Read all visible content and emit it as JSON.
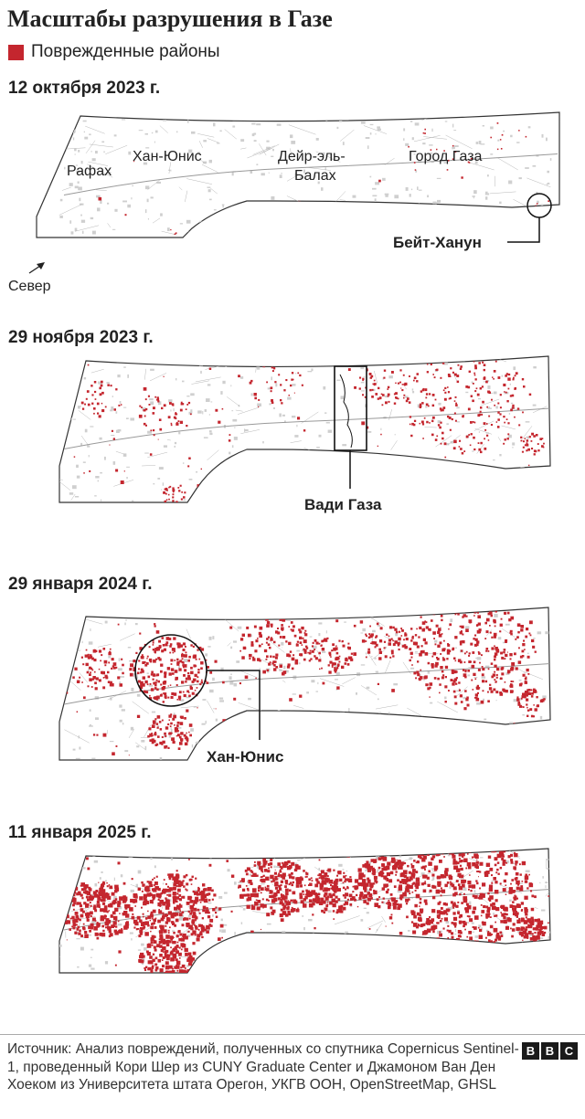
{
  "title": "Масштабы разрушения в Газе",
  "legend": {
    "label": "Поврежденные районы",
    "color": "#c4262e"
  },
  "colors": {
    "damage": "#c4262e",
    "urban": "#cfcfcf",
    "roads": "#b8b8b8",
    "outline": "#333333"
  },
  "panels": [
    {
      "date": "12 октября 2023 г.",
      "damage_level": 0.05,
      "city_labels": [
        "Рафах",
        "Хан-Юнис",
        "Дейр-эль-",
        "Балах",
        "Город Газа"
      ],
      "callout": "Бейт-Ханун",
      "north_label": "Север"
    },
    {
      "date": "29 ноября 2023 г.",
      "damage_level": 0.35,
      "callout": "Вади Газа"
    },
    {
      "date": "29 января 2024 г.",
      "damage_level": 0.55,
      "callout": "Хан-Юнис"
    },
    {
      "date": "11 января 2025 г.",
      "damage_level": 0.8
    }
  ],
  "footer": {
    "source": "Источник: Анализ повреждений, полученных со спутника Copernicus Sentinel-1, проведенный Кори Шер из CUNY Graduate Center и Джамоном Ван Ден Хоеком из Университета штата Орегон, УКГВ ООН, OpenStreetMap, GHSL",
    "logo": [
      "B",
      "B",
      "C"
    ]
  }
}
